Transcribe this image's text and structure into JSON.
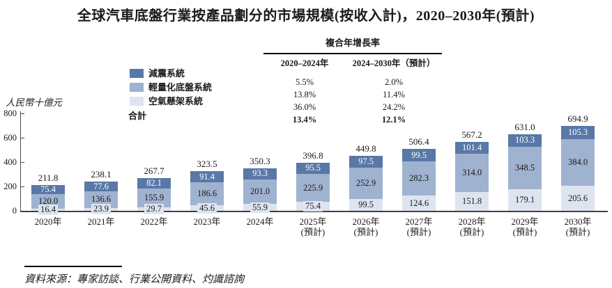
{
  "title": "全球汽車底盤行業按產品劃分的市場規模(按收入計)，2020–2030年(預計)",
  "y_axis": {
    "unit_label": "人民幣十億元",
    "ticks": [
      0,
      200,
      400,
      600,
      800
    ]
  },
  "legend": {
    "items": [
      {
        "key": "damping-system",
        "label": "減震系統",
        "color": "#5878a7"
      },
      {
        "key": "lightweight-chassis-system",
        "label": "輕量化底盤系統",
        "color": "#9fb2d0"
      },
      {
        "key": "air-suspension-system",
        "label": "空氣懸架系統",
        "color": "#dee4ef"
      }
    ],
    "total_label": "合計"
  },
  "cagr_table": {
    "title": "複合年增長率",
    "columns": [
      "2020–2024年",
      "2024–2030年（預計）"
    ],
    "rows": [
      {
        "label": "減震系統",
        "c1": "5.5%",
        "c2": "2.0%",
        "bold": false
      },
      {
        "label": "輕量化底盤系統",
        "c1": "13.8%",
        "c2": "11.4%",
        "bold": false
      },
      {
        "label": "空氣懸架系統",
        "c1": "36.0%",
        "c2": "24.2%",
        "bold": false
      },
      {
        "label": "合計",
        "c1": "13.4%",
        "c2": "12.1%",
        "bold": true
      }
    ]
  },
  "chart_data": {
    "type": "bar",
    "stacked": true,
    "title": "全球汽車底盤行業按產品劃分的市場規模(按收入計)，2020–2030年(預計)",
    "ylabel": "人民幣十億元",
    "ylim": [
      0,
      800
    ],
    "grid": false,
    "legend_position": "upper-left",
    "categories": [
      {
        "year": "2020年",
        "note": ""
      },
      {
        "year": "2021年",
        "note": ""
      },
      {
        "year": "2022年",
        "note": ""
      },
      {
        "year": "2023年",
        "note": ""
      },
      {
        "year": "2024年",
        "note": ""
      },
      {
        "year": "2025年",
        "note": "(預計)"
      },
      {
        "year": "2026年",
        "note": "(預計)"
      },
      {
        "year": "2027年",
        "note": "(預計)"
      },
      {
        "year": "2028年",
        "note": "(預計)"
      },
      {
        "year": "2029年",
        "note": "(預計)"
      },
      {
        "year": "2030年",
        "note": "(預計)"
      }
    ],
    "series": [
      {
        "key": "air-suspension-system",
        "name": "空氣懸架系統",
        "color": "#dee4ef",
        "text_color": "#1a1a1a",
        "values": [
          16.4,
          23.9,
          29.7,
          45.6,
          55.9,
          75.4,
          99.5,
          124.6,
          151.8,
          179.1,
          205.6
        ]
      },
      {
        "key": "lightweight-chassis-system",
        "name": "輕量化底盤系統",
        "color": "#9fb2d0",
        "text_color": "#1a1a1a",
        "values": [
          120.0,
          136.6,
          155.9,
          186.6,
          201.0,
          225.9,
          252.9,
          282.3,
          314.0,
          348.5,
          384.0
        ]
      },
      {
        "key": "damping-system",
        "name": "減震系統",
        "color": "#5878a7",
        "text_color": "#ffffff",
        "values": [
          75.4,
          77.6,
          82.1,
          91.4,
          93.3,
          95.5,
          97.5,
          99.5,
          101.4,
          103.3,
          105.3
        ]
      }
    ],
    "totals": [
      211.8,
      238.1,
      267.7,
      323.5,
      350.3,
      396.8,
      449.8,
      506.4,
      567.2,
      631.0,
      694.9
    ]
  },
  "source": "資料來源：專家訪談、行業公開資料、灼識諮詢"
}
